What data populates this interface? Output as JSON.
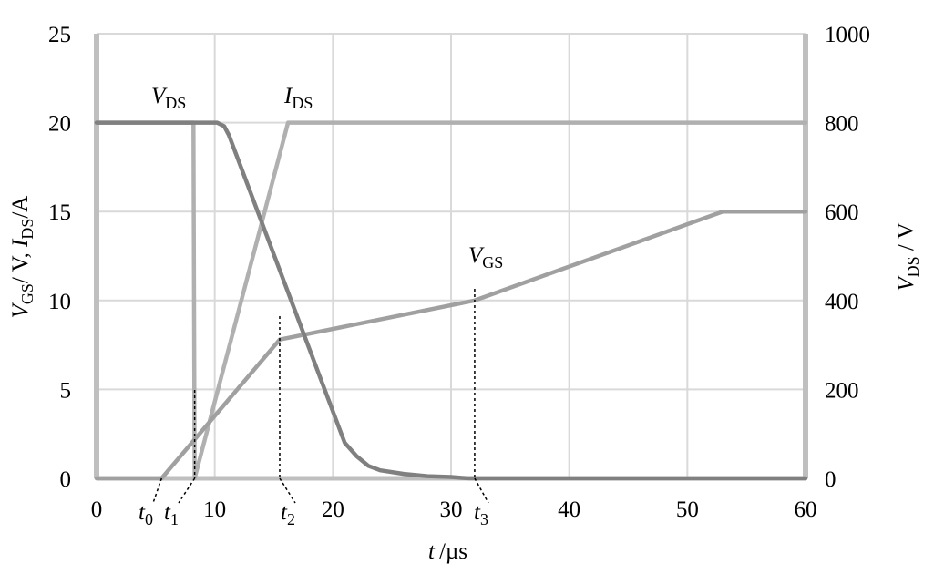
{
  "chart_data": {
    "type": "line",
    "xlabel": {
      "var": "t",
      "unit": "/µs"
    },
    "ylabel_left": {
      "a_var": "V",
      "a_sub": "GS",
      "a_unit": "/ V, ",
      "b_var": "I",
      "b_sub": "DS",
      "b_unit": "/A"
    },
    "ylabel_right": {
      "var": "V",
      "sub": "DS",
      "unit": " / V"
    },
    "xlim": [
      0,
      60
    ],
    "ylim_left": [
      0,
      25
    ],
    "ylim_right": [
      0,
      1000
    ],
    "x_ticks": [
      "0",
      "10",
      "20",
      "30",
      "40",
      "50",
      "60"
    ],
    "y_left_ticks": [
      "0",
      "5",
      "10",
      "15",
      "20",
      "25"
    ],
    "y_right_ticks": [
      "0",
      "200",
      "400",
      "600",
      "800",
      "1000"
    ],
    "grid": true,
    "series": [
      {
        "name": {
          "var": "V",
          "sub": "DS"
        },
        "axis": "right",
        "color": "#808080",
        "points": [
          [
            0,
            800
          ],
          [
            10.2,
            800
          ],
          [
            10.8,
            792
          ],
          [
            11.2,
            772
          ],
          [
            21,
            80
          ],
          [
            22,
            50
          ],
          [
            23,
            28
          ],
          [
            24,
            18
          ],
          [
            26,
            10
          ],
          [
            28,
            5
          ],
          [
            30,
            3
          ],
          [
            31.5,
            0
          ],
          [
            60,
            0
          ]
        ]
      },
      {
        "name": {
          "var": "I",
          "sub": "DS"
        },
        "axis": "left",
        "color": "#b0b0b0",
        "points": [
          [
            0,
            20
          ],
          [
            8.2,
            20
          ],
          [
            8.3,
            0
          ],
          [
            16.2,
            20
          ],
          [
            60,
            20
          ]
        ]
      },
      {
        "name": {
          "var": "V",
          "sub": "GS"
        },
        "axis": "left",
        "color": "#a0a0a0",
        "points": [
          [
            0,
            0
          ],
          [
            5.5,
            0
          ],
          [
            15.5,
            7.8
          ],
          [
            32,
            10
          ],
          [
            53,
            15
          ],
          [
            60,
            15
          ]
        ]
      }
    ],
    "annotations": [
      {
        "label": {
          "var": "t",
          "sub": "0"
        },
        "x": 5.5
      },
      {
        "label": {
          "var": "t",
          "sub": "1"
        },
        "x": 8.3
      },
      {
        "label": {
          "var": "t",
          "sub": "2"
        },
        "x": 15.5
      },
      {
        "label": {
          "var": "t",
          "sub": "3"
        },
        "x": 32
      }
    ]
  }
}
